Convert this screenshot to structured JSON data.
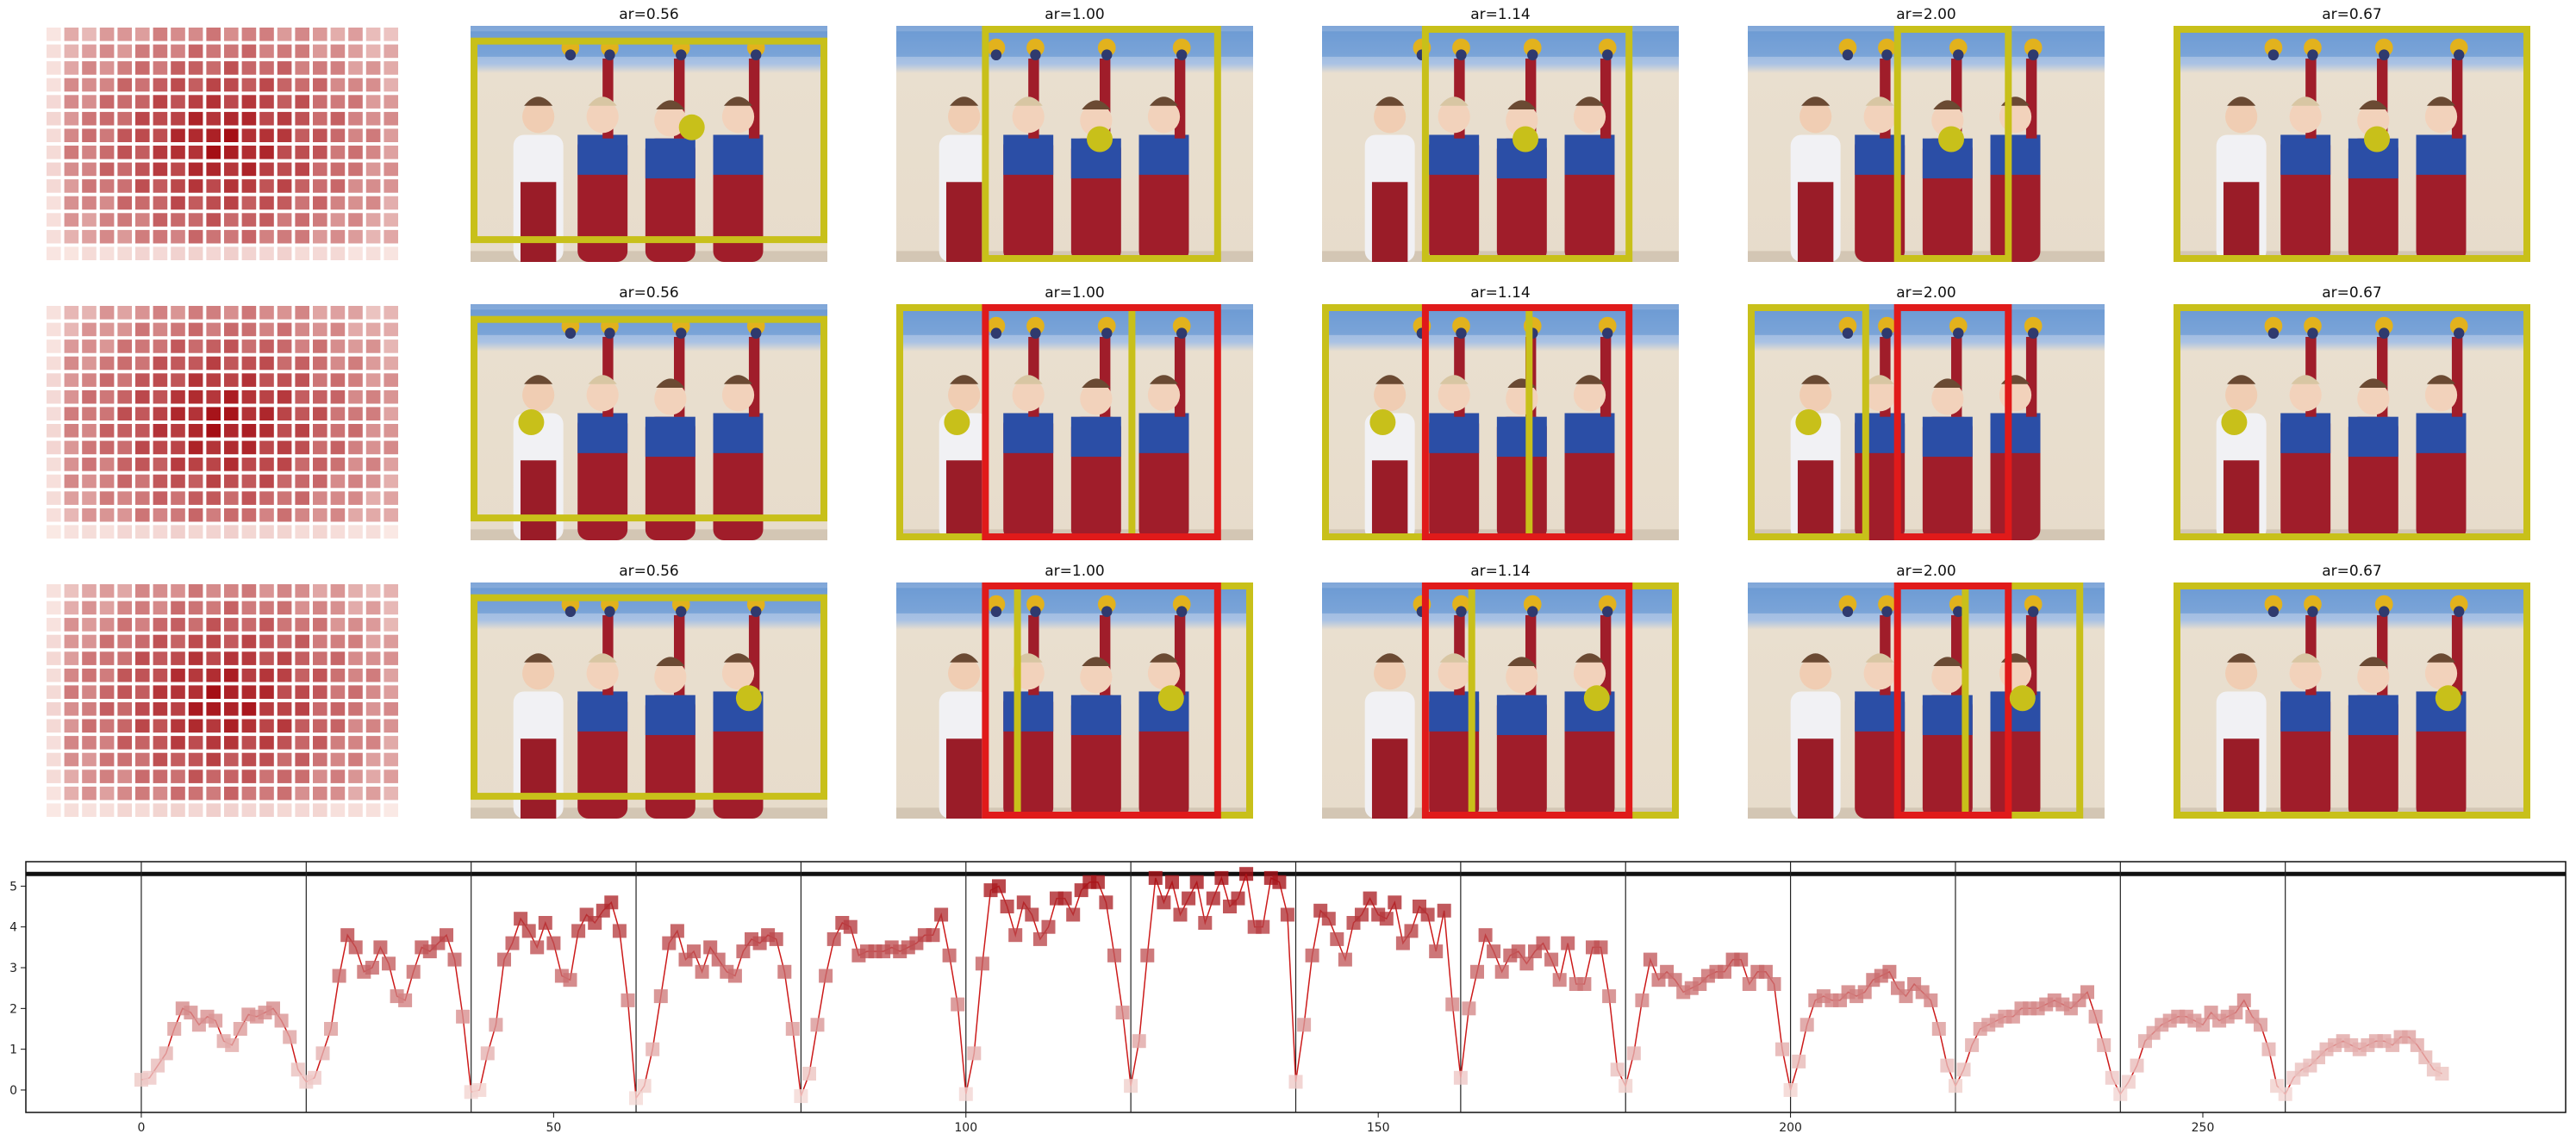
{
  "figure": {
    "grid_rows": 3,
    "row_panels": [
      {
        "heatmap": "saliency-heatmap",
        "panels": [
          {
            "title": "ar=0.56",
            "marker_pos": [
              0.62,
              0.43
            ],
            "boxes": [
              {
                "color": "yellow",
                "fx": [
                  0.0,
                  1.0
                ],
                "fy": [
                  0.05,
                  0.92
                ]
              }
            ]
          },
          {
            "title": "ar=1.00",
            "marker_pos": [
              0.57,
              0.48
            ],
            "boxes": [
              {
                "color": "yellow",
                "fx": [
                  0.24,
                  0.91
                ],
                "fy": [
                  0.0,
                  1.0
                ]
              }
            ]
          },
          {
            "title": "ar=1.14",
            "marker_pos": [
              0.57,
              0.48
            ],
            "boxes": [
              {
                "color": "yellow",
                "fx": [
                  0.28,
                  0.87
                ],
                "fy": [
                  0.0,
                  1.0
                ]
              }
            ]
          },
          {
            "title": "ar=2.00",
            "marker_pos": [
              0.57,
              0.48
            ],
            "boxes": [
              {
                "color": "yellow",
                "fx": [
                  0.41,
                  0.74
                ],
                "fy": [
                  0.0,
                  1.0
                ]
              }
            ]
          },
          {
            "title": "ar=0.67",
            "marker_pos": [
              0.57,
              0.48
            ],
            "boxes": [
              {
                "color": "yellow",
                "fx": [
                  0.0,
                  1.0
                ],
                "fy": [
                  0.0,
                  1.0
                ]
              }
            ]
          }
        ]
      },
      {
        "heatmap": "saliency-heatmap",
        "panels": [
          {
            "title": "ar=0.56",
            "marker_pos": [
              0.17,
              0.5
            ],
            "boxes": [
              {
                "color": "yellow",
                "fx": [
                  0.0,
                  1.0
                ],
                "fy": [
                  0.05,
                  0.92
                ]
              }
            ]
          },
          {
            "title": "ar=1.00",
            "marker_pos": [
              0.17,
              0.5
            ],
            "boxes": [
              {
                "color": "yellow",
                "fx": [
                  0.0,
                  0.67
                ],
                "fy": [
                  0.0,
                  1.0
                ]
              },
              {
                "color": "red",
                "fx": [
                  0.24,
                  0.91
                ],
                "fy": [
                  0.0,
                  1.0
                ]
              }
            ]
          },
          {
            "title": "ar=1.14",
            "marker_pos": [
              0.17,
              0.5
            ],
            "boxes": [
              {
                "color": "yellow",
                "fx": [
                  0.0,
                  0.59
                ],
                "fy": [
                  0.0,
                  1.0
                ]
              },
              {
                "color": "red",
                "fx": [
                  0.28,
                  0.87
                ],
                "fy": [
                  0.0,
                  1.0
                ]
              }
            ]
          },
          {
            "title": "ar=2.00",
            "marker_pos": [
              0.17,
              0.5
            ],
            "boxes": [
              {
                "color": "yellow",
                "fx": [
                  0.0,
                  0.34
                ],
                "fy": [
                  0.0,
                  1.0
                ]
              },
              {
                "color": "red",
                "fx": [
                  0.41,
                  0.74
                ],
                "fy": [
                  0.0,
                  1.0
                ]
              }
            ]
          },
          {
            "title": "ar=0.67",
            "marker_pos": [
              0.17,
              0.5
            ],
            "boxes": [
              {
                "color": "yellow",
                "fx": [
                  0.0,
                  1.0
                ],
                "fy": [
                  0.0,
                  1.0
                ]
              }
            ]
          }
        ]
      },
      {
        "heatmap": "saliency-heatmap",
        "panels": [
          {
            "title": "ar=0.56",
            "marker_pos": [
              0.78,
              0.49
            ],
            "boxes": [
              {
                "color": "yellow",
                "fx": [
                  0.0,
                  1.0
                ],
                "fy": [
                  0.05,
                  0.92
                ]
              }
            ]
          },
          {
            "title": "ar=1.00",
            "marker_pos": [
              0.77,
              0.49
            ],
            "boxes": [
              {
                "color": "yellow",
                "fx": [
                  0.33,
                  1.0
                ],
                "fy": [
                  0.0,
                  1.0
                ]
              },
              {
                "color": "red",
                "fx": [
                  0.24,
                  0.91
                ],
                "fy": [
                  0.0,
                  1.0
                ]
              }
            ]
          },
          {
            "title": "ar=1.14",
            "marker_pos": [
              0.77,
              0.49
            ],
            "boxes": [
              {
                "color": "yellow",
                "fx": [
                  0.41,
                  1.0
                ],
                "fy": [
                  0.0,
                  1.0
                ]
              },
              {
                "color": "red",
                "fx": [
                  0.28,
                  0.87
                ],
                "fy": [
                  0.0,
                  1.0
                ]
              }
            ]
          },
          {
            "title": "ar=2.00",
            "marker_pos": [
              0.77,
              0.49
            ],
            "boxes": [
              {
                "color": "yellow",
                "fx": [
                  0.6,
                  0.94
                ],
                "fy": [
                  0.0,
                  1.0
                ]
              },
              {
                "color": "red",
                "fx": [
                  0.41,
                  0.74
                ],
                "fy": [
                  0.0,
                  1.0
                ]
              }
            ]
          },
          {
            "title": "ar=0.67",
            "marker_pos": [
              0.77,
              0.49
            ],
            "boxes": [
              {
                "color": "yellow",
                "fx": [
                  0.0,
                  1.0
                ],
                "fy": [
                  0.0,
                  1.0
                ]
              }
            ]
          }
        ]
      }
    ],
    "colors": {
      "yellow": "#c8c01a",
      "red": "#e01a1a",
      "heat_low": "#fff5f0",
      "heat_high": "#a50f15",
      "line": "#cc1a1a"
    }
  },
  "chart_data": {
    "type": "line",
    "title": "",
    "xlabel": "",
    "ylabel": "",
    "xlim": [
      -14,
      294
    ],
    "ylim": [
      -0.55,
      5.6
    ],
    "xticks": [
      "0",
      "50",
      "100",
      "150",
      "200",
      "250"
    ],
    "yticks": [
      "0",
      "1",
      "2",
      "3",
      "4",
      "5"
    ],
    "top_line_y": 5.3,
    "separators_x": [
      0,
      20,
      40,
      60,
      80,
      100,
      120,
      140,
      160,
      180,
      200,
      220,
      240,
      260
    ],
    "series": [
      {
        "values": [
          0.25,
          0.3,
          0.6,
          0.9,
          1.5,
          2.0,
          1.9,
          1.6,
          1.8,
          1.7,
          1.2,
          1.1,
          1.5,
          1.85,
          1.8,
          1.9,
          2.0,
          1.7,
          1.3,
          0.5,
          0.2,
          0.3,
          0.9,
          1.5,
          2.8,
          3.8,
          3.5,
          2.9,
          3.0,
          3.5,
          3.1,
          2.3,
          2.2,
          2.9,
          3.5,
          3.4,
          3.6,
          3.8,
          3.2,
          1.8,
          -0.05,
          0.0,
          0.9,
          1.6,
          3.2,
          3.6,
          4.2,
          3.9,
          3.5,
          4.1,
          3.6,
          2.8,
          2.7,
          3.9,
          4.3,
          4.1,
          4.4,
          4.6,
          3.9,
          2.2,
          -0.2,
          0.1,
          1.0,
          2.3,
          3.6,
          3.9,
          3.2,
          3.4,
          2.9,
          3.5,
          3.2,
          2.9,
          2.8,
          3.4,
          3.7,
          3.6,
          3.8,
          3.7,
          2.9,
          1.5,
          -0.15,
          0.4,
          1.6,
          2.8,
          3.7,
          4.1,
          4.0,
          3.3,
          3.4,
          3.4,
          3.4,
          3.5,
          3.4,
          3.5,
          3.6,
          3.8,
          3.8,
          4.3,
          3.3,
          2.1,
          -0.1,
          0.9,
          3.1,
          4.9,
          5.0,
          4.5,
          3.8,
          4.6,
          4.3,
          3.7,
          4.0,
          4.7,
          4.7,
          4.3,
          4.9,
          5.1,
          5.1,
          4.6,
          3.3,
          1.9,
          0.1,
          1.2,
          3.3,
          5.2,
          4.6,
          5.1,
          4.3,
          4.7,
          5.1,
          4.1,
          4.7,
          5.2,
          4.5,
          4.7,
          5.3,
          4.0,
          4.0,
          5.2,
          5.1,
          4.3,
          0.2,
          1.6,
          3.3,
          4.4,
          4.2,
          3.7,
          3.2,
          4.1,
          4.3,
          4.7,
          4.3,
          4.2,
          4.6,
          3.6,
          3.9,
          4.5,
          4.3,
          3.4,
          4.4,
          2.1,
          0.3,
          2.0,
          2.9,
          3.8,
          3.4,
          2.9,
          3.3,
          3.4,
          3.1,
          3.4,
          3.6,
          3.2,
          2.7,
          3.6,
          2.6,
          2.6,
          3.5,
          3.5,
          2.3,
          0.5,
          0.1,
          0.9,
          2.2,
          3.2,
          2.7,
          2.9,
          2.7,
          2.4,
          2.5,
          2.6,
          2.8,
          2.9,
          2.9,
          3.2,
          3.2,
          2.6,
          2.9,
          2.9,
          2.6,
          1.0,
          0.0,
          0.7,
          1.6,
          2.2,
          2.3,
          2.2,
          2.2,
          2.4,
          2.3,
          2.4,
          2.7,
          2.8,
          2.9,
          2.5,
          2.3,
          2.6,
          2.4,
          2.2,
          1.5,
          0.6,
          0.1,
          0.5,
          1.1,
          1.5,
          1.6,
          1.7,
          1.8,
          1.8,
          2.0,
          2.0,
          2.0,
          2.1,
          2.2,
          2.1,
          2.0,
          2.2,
          2.4,
          1.8,
          1.1,
          0.3,
          -0.1,
          0.2,
          0.6,
          1.2,
          1.4,
          1.6,
          1.7,
          1.8,
          1.8,
          1.7,
          1.6,
          1.9,
          1.7,
          1.8,
          1.9,
          2.2,
          1.8,
          1.6,
          1.0,
          0.1,
          -0.1,
          0.3,
          0.5,
          0.6,
          0.8,
          1.0,
          1.1,
          1.2,
          1.1,
          1.0,
          1.1,
          1.2,
          1.2,
          1.1,
          1.3,
          1.3,
          1.1,
          0.8,
          0.5,
          0.4
        ]
      }
    ]
  }
}
